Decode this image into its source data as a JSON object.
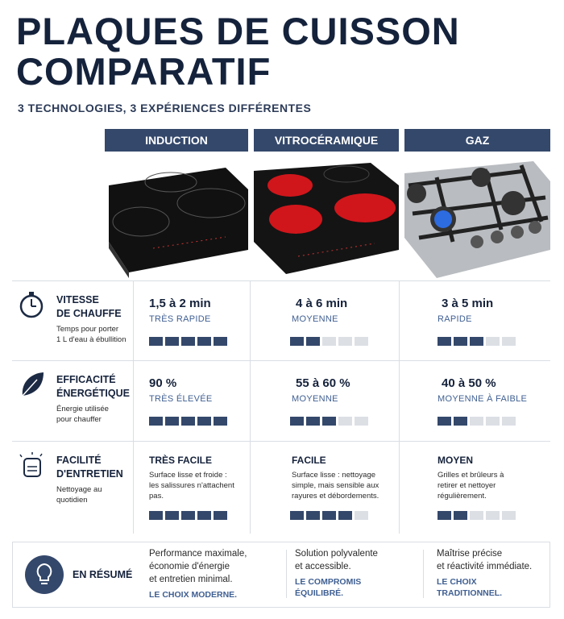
{
  "header": {
    "title_lines": [
      "PLAQUES DE CUISSON",
      "COMPARATIF"
    ],
    "subtitle": "3 TECHNOLOGIES, 3 EXPÉRIENCES DIFFÉRENTES"
  },
  "columns": [
    "INDUCTION",
    "VITROCÉRAMIQUE",
    "GAZ"
  ],
  "rating_scale": 5,
  "rows": [
    {
      "label_lines": [
        "VITESSE",
        "DE CHAUFFE"
      ],
      "description_lines": [
        "Temps pour porter",
        "1 L d'eau à ébullition"
      ],
      "cells": [
        {
          "main": "1,5 à 2 min",
          "sub": "TRÈS RAPIDE",
          "rating": 5
        },
        {
          "main": "4 à 6 min",
          "sub": "MOYENNE",
          "rating": 2
        },
        {
          "main": "3 à 5 min",
          "sub": "RAPIDE",
          "rating": 3
        }
      ]
    },
    {
      "label_lines": [
        "EFFICACITÉ",
        "ÉNERGÉTIQUE"
      ],
      "description_lines": [
        "Énergie utilisée",
        "pour chauffer"
      ],
      "cells": [
        {
          "main": "90 %",
          "sub": "TRÈS ÉLEVÉE",
          "rating": 5
        },
        {
          "main": "55 à 60 %",
          "sub": "MOYENNE",
          "rating": 3
        },
        {
          "main": "40 à 50 %",
          "sub": "MOYENNE À FAIBLE",
          "rating": 2
        }
      ]
    },
    {
      "label_lines": [
        "FACILITÉ",
        "D'ENTRETIEN"
      ],
      "description_lines": [
        "Nettoyage au",
        "quotidien"
      ],
      "cells": [
        {
          "main": "TRÈS FACILE",
          "detail_lines": [
            "Surface lisse et froide :",
            "les salissures n'attachent",
            "pas."
          ],
          "rating": 5
        },
        {
          "main": "FACILE",
          "detail_lines": [
            "Surface lisse : nettoyage",
            "simple, mais sensible aux",
            "rayures et débordements."
          ],
          "rating": 4
        },
        {
          "main": "MOYEN",
          "detail_lines": [
            "Grilles et brûleurs à",
            "retirer et nettoyer",
            "régulièrement."
          ],
          "rating": 2
        }
      ]
    }
  ],
  "summary": {
    "label": "EN RÉSUMÉ",
    "items": [
      {
        "lines": [
          "Performance maximale,",
          "économie d'énergie",
          "et entretien minimal."
        ],
        "tag_lines": [
          "LE CHOIX MODERNE."
        ]
      },
      {
        "lines": [
          "Solution polyvalente",
          "et accessible."
        ],
        "tag_lines": [
          "LE COMPROMIS",
          "ÉQUILIBRÉ."
        ]
      },
      {
        "lines": [
          "Maîtrise précise",
          "et réactivité immédiate."
        ],
        "tag_lines": [
          "LE CHOIX",
          "TRADITIONNEL."
        ]
      }
    ]
  }
}
